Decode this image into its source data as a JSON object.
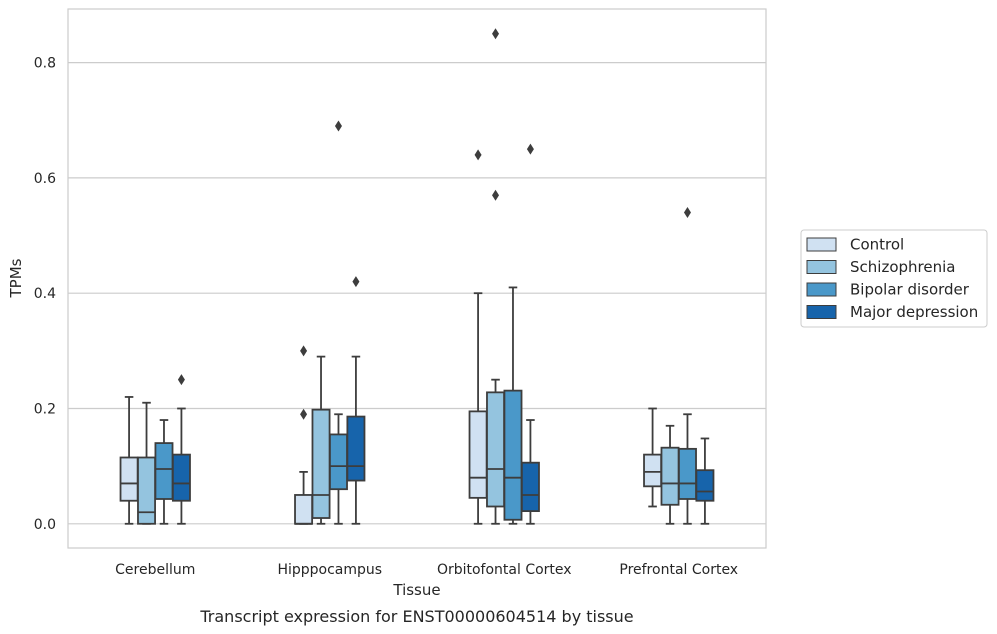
{
  "chart_data": {
    "type": "box",
    "caption": "Transcript expression for ENST00000604514 by tissue",
    "xlabel": "Tissue",
    "ylabel": "TPMs",
    "ylim": [
      -0.042,
      0.893
    ],
    "yticks": [
      0.0,
      0.2,
      0.4,
      0.6,
      0.8
    ],
    "ytick_labels": [
      "0.0",
      "0.2",
      "0.4",
      "0.6",
      "0.8"
    ],
    "grid": "horizontal",
    "legend_position": "right",
    "categories": [
      "Cerebellum",
      "Hipppocampus",
      "Orbitofontal Cortex",
      "Prefrontal Cortex"
    ],
    "series": [
      {
        "name": "Control",
        "color": "#d0e1f2",
        "boxes": [
          {
            "whislo": 0.0,
            "q1": 0.04,
            "med": 0.07,
            "q3": 0.115,
            "whishi": 0.22,
            "fliers": []
          },
          {
            "whislo": 0.0,
            "q1": 0.0,
            "med": 0.0,
            "q3": 0.05,
            "whishi": 0.09,
            "fliers": [
              0.19,
              0.3
            ]
          },
          {
            "whislo": 0.0,
            "q1": 0.045,
            "med": 0.08,
            "q3": 0.195,
            "whishi": 0.4,
            "fliers": [
              0.64
            ]
          },
          {
            "whislo": 0.03,
            "q1": 0.065,
            "med": 0.09,
            "q3": 0.12,
            "whishi": 0.2,
            "fliers": []
          }
        ]
      },
      {
        "name": "Schizophrenia",
        "color": "#94c4df",
        "boxes": [
          {
            "whislo": 0.0,
            "q1": 0.0,
            "med": 0.02,
            "q3": 0.115,
            "whishi": 0.21,
            "fliers": []
          },
          {
            "whislo": 0.0,
            "q1": 0.01,
            "med": 0.05,
            "q3": 0.198,
            "whishi": 0.29,
            "fliers": []
          },
          {
            "whislo": 0.0,
            "q1": 0.03,
            "med": 0.095,
            "q3": 0.228,
            "whishi": 0.25,
            "fliers": [
              0.57,
              0.85
            ]
          },
          {
            "whislo": 0.0,
            "q1": 0.033,
            "med": 0.07,
            "q3": 0.132,
            "whishi": 0.17,
            "fliers": []
          }
        ]
      },
      {
        "name": "Bipolar disorder",
        "color": "#4a98c9",
        "boxes": [
          {
            "whislo": 0.0,
            "q1": 0.043,
            "med": 0.095,
            "q3": 0.14,
            "whishi": 0.18,
            "fliers": []
          },
          {
            "whislo": 0.0,
            "q1": 0.06,
            "med": 0.1,
            "q3": 0.155,
            "whishi": 0.19,
            "fliers": [
              0.69
            ]
          },
          {
            "whislo": 0.0,
            "q1": 0.007,
            "med": 0.08,
            "q3": 0.231,
            "whishi": 0.41,
            "fliers": []
          },
          {
            "whislo": 0.0,
            "q1": 0.043,
            "med": 0.07,
            "q3": 0.13,
            "whishi": 0.19,
            "fliers": [
              0.54
            ]
          }
        ]
      },
      {
        "name": "Major depression",
        "color": "#1764ab",
        "boxes": [
          {
            "whislo": 0.0,
            "q1": 0.04,
            "med": 0.07,
            "q3": 0.12,
            "whishi": 0.2,
            "fliers": [
              0.25
            ]
          },
          {
            "whislo": 0.0,
            "q1": 0.075,
            "med": 0.1,
            "q3": 0.186,
            "whishi": 0.29,
            "fliers": [
              0.42
            ]
          },
          {
            "whislo": 0.0,
            "q1": 0.022,
            "med": 0.05,
            "q3": 0.106,
            "whishi": 0.18,
            "fliers": [
              0.65
            ]
          },
          {
            "whislo": 0.0,
            "q1": 0.04,
            "med": 0.056,
            "q3": 0.093,
            "whishi": 0.148,
            "fliers": []
          }
        ]
      }
    ]
  }
}
